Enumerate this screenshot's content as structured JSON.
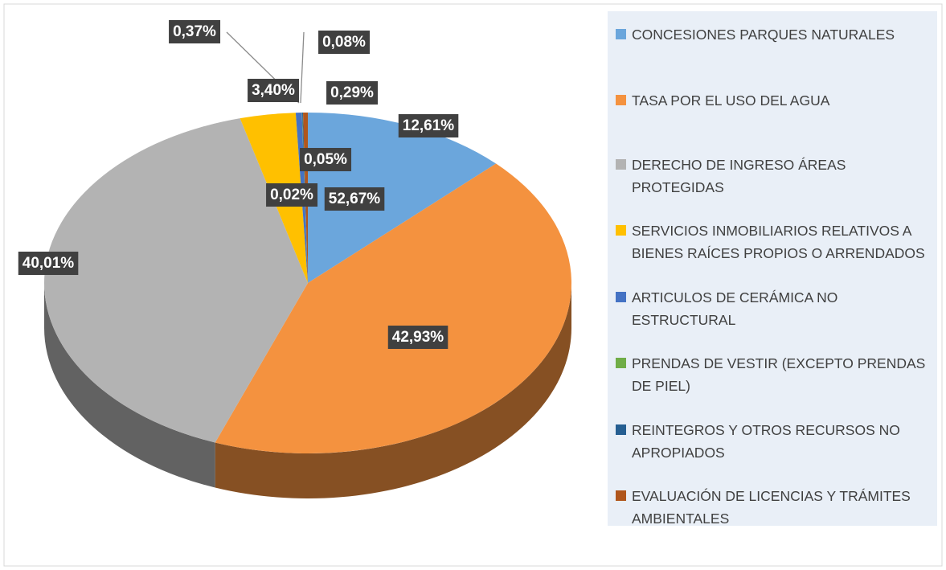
{
  "chart_data": {
    "type": "pie3d",
    "categories": [
      "CONCESIONES PARQUES NATURALES",
      "TASA POR EL USO DEL AGUA",
      "DERECHO DE INGRESO ÁREAS PROTEGIDAS",
      "SERVICIOS INMOBILIARIOS RELATIVOS A BIENES RAÍCES PROPIOS O ARRENDADOS",
      "ARTICULOS DE CERÁMICA NO ESTRUCTURAL",
      "PRENDAS DE VESTIR (EXCEPTO PRENDAS DE PIEL)",
      "REINTEGROS Y OTROS RECURSOS NO APROPIADOS",
      "EVALUACIÓN DE LICENCIAS Y TRÁMITES AMBIENTALES"
    ],
    "values": [
      12.61,
      42.93,
      40.01,
      3.4,
      0.37,
      0.02,
      0.05,
      0.29
    ],
    "value_labels": [
      "12,61%",
      "42,93%",
      "40,01%",
      "3,40%",
      "0,37%",
      "0,02%",
      "0,05%",
      "0,29%"
    ],
    "colors": [
      "#6ba6dc",
      "#f4923f",
      "#b3b3b3",
      "#ffc000",
      "#4472c4",
      "#70ad47",
      "#255e91",
      "#b0561c"
    ],
    "annotations": [
      "0,08%",
      "52,67%"
    ],
    "legend": "right"
  }
}
